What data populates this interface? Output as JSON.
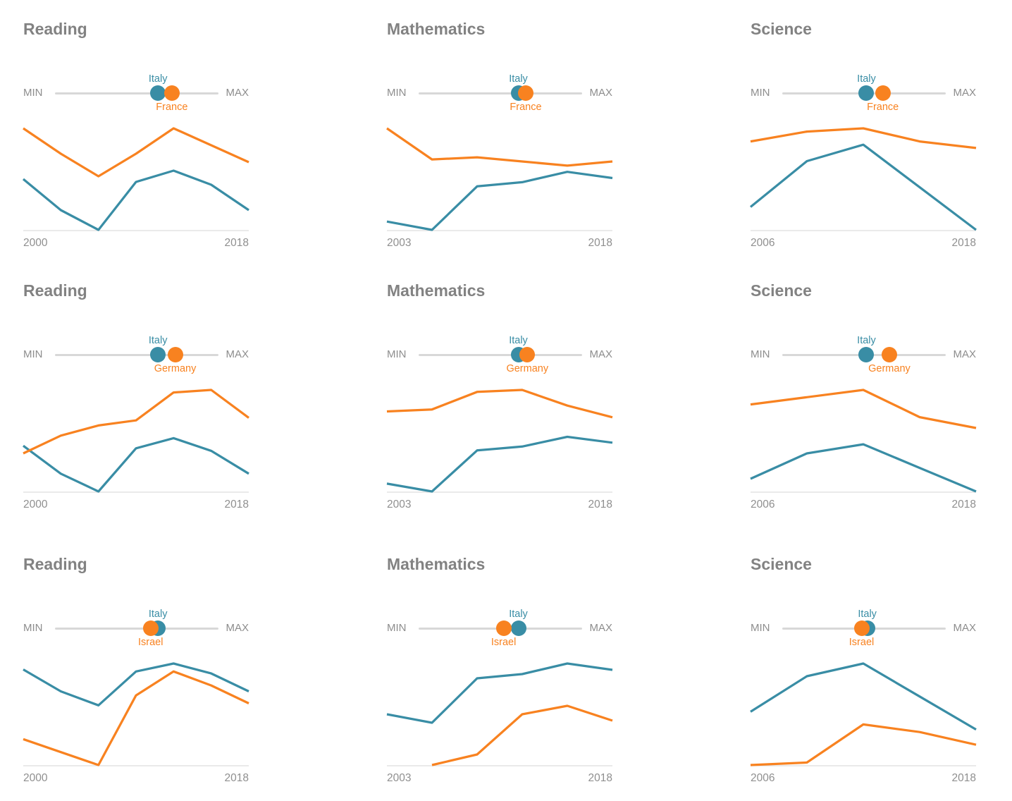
{
  "colors": {
    "italy": "#398DA5",
    "partner": "#F88220",
    "title": "#828282",
    "minmax": "#8D8D8D",
    "axis": "#8F8F8F",
    "track": "#D8D8D8",
    "baseline": "#DDDDDD",
    "bg": "#FFFFFF"
  },
  "slider_labels": {
    "min": "MIN",
    "max": "MAX"
  },
  "chart_data": [
    {
      "type": "line",
      "title": "Reading",
      "partner": "France",
      "x": [
        2000,
        2003,
        2006,
        2009,
        2012,
        2015,
        2018
      ],
      "xlabel_left": "2000",
      "xlabel_right": "2018",
      "series": [
        {
          "name": "Italy",
          "role": "italy",
          "values": [
            487,
            476,
            469,
            486,
            490,
            485,
            476
          ]
        },
        {
          "name": "France",
          "role": "partner",
          "values": [
            505,
            496,
            488,
            496,
            505,
            499,
            493
          ]
        }
      ],
      "slider": {
        "italy": 0.63,
        "partner": 0.715
      }
    },
    {
      "type": "line",
      "title": "Mathematics",
      "partner": "France",
      "x": [
        2003,
        2006,
        2009,
        2012,
        2015,
        2018
      ],
      "xlabel_left": "2003",
      "xlabel_right": "2018",
      "series": [
        {
          "name": "Italy",
          "role": "italy",
          "values": [
            466,
            462,
            483,
            485,
            490,
            487
          ]
        },
        {
          "name": "France",
          "role": "partner",
          "values": [
            511,
            496,
            497,
            495,
            493,
            495
          ]
        }
      ],
      "slider": {
        "italy": 0.61,
        "partner": 0.655
      }
    },
    {
      "type": "line",
      "title": "Science",
      "partner": "France",
      "x": [
        2006,
        2009,
        2012,
        2015,
        2018
      ],
      "xlabel_left": "2006",
      "xlabel_right": "2018",
      "series": [
        {
          "name": "Italy",
          "role": "italy",
          "values": [
            475,
            489,
            494,
            481,
            468
          ]
        },
        {
          "name": "France",
          "role": "partner",
          "values": [
            495,
            498,
            499,
            495,
            493
          ]
        }
      ],
      "slider": {
        "italy": 0.515,
        "partner": 0.615
      }
    },
    {
      "type": "line",
      "title": "Reading",
      "partner": "Germany",
      "x": [
        2000,
        2003,
        2006,
        2009,
        2012,
        2015,
        2018
      ],
      "xlabel_left": "2000",
      "xlabel_right": "2018",
      "series": [
        {
          "name": "Italy",
          "role": "italy",
          "values": [
            487,
            476,
            469,
            486,
            490,
            485,
            476
          ]
        },
        {
          "name": "Germany",
          "role": "partner",
          "values": [
            484,
            491,
            495,
            497,
            508,
            509,
            498
          ]
        }
      ],
      "slider": {
        "italy": 0.63,
        "partner": 0.735
      }
    },
    {
      "type": "line",
      "title": "Mathematics",
      "partner": "Germany",
      "x": [
        2003,
        2006,
        2009,
        2012,
        2015,
        2018
      ],
      "xlabel_left": "2003",
      "xlabel_right": "2018",
      "series": [
        {
          "name": "Italy",
          "role": "italy",
          "values": [
            466,
            462,
            483,
            485,
            490,
            487
          ]
        },
        {
          "name": "Germany",
          "role": "partner",
          "values": [
            503,
            504,
            513,
            514,
            506,
            500
          ]
        }
      ],
      "slider": {
        "italy": 0.61,
        "partner": 0.665
      }
    },
    {
      "type": "line",
      "title": "Science",
      "partner": "Germany",
      "x": [
        2006,
        2009,
        2012,
        2015,
        2018
      ],
      "xlabel_left": "2006",
      "xlabel_right": "2018",
      "series": [
        {
          "name": "Italy",
          "role": "italy",
          "values": [
            475,
            489,
            494,
            481,
            468
          ]
        },
        {
          "name": "Germany",
          "role": "partner",
          "values": [
            516,
            520,
            524,
            509,
            503
          ]
        }
      ],
      "slider": {
        "italy": 0.515,
        "partner": 0.655
      }
    },
    {
      "type": "line",
      "title": "Reading",
      "partner": "Israel",
      "x": [
        2000,
        2003,
        2006,
        2009,
        2012,
        2015,
        2018
      ],
      "xlabel_left": "2000",
      "xlabel_right": "2018",
      "series": [
        {
          "name": "Italy",
          "role": "italy",
          "values": [
            487,
            476,
            469,
            486,
            490,
            485,
            476
          ]
        },
        {
          "name": "Israel",
          "role": "partner",
          "values": [
            452,
            null,
            439,
            474,
            486,
            479,
            470
          ]
        }
      ],
      "slider": {
        "italy": 0.63,
        "partner": 0.585
      }
    },
    {
      "type": "line",
      "title": "Mathematics",
      "partner": "Israel",
      "x": [
        2003,
        2006,
        2009,
        2012,
        2015,
        2018
      ],
      "xlabel_left": "2003",
      "xlabel_right": "2018",
      "series": [
        {
          "name": "Italy",
          "role": "italy",
          "values": [
            466,
            462,
            483,
            485,
            490,
            487
          ]
        },
        {
          "name": "Israel",
          "role": "partner",
          "values": [
            null,
            442,
            447,
            466,
            470,
            463
          ]
        }
      ],
      "slider": {
        "italy": 0.61,
        "partner": 0.52
      }
    },
    {
      "type": "line",
      "title": "Science",
      "partner": "Israel",
      "x": [
        2006,
        2009,
        2012,
        2015,
        2018
      ],
      "xlabel_left": "2006",
      "xlabel_right": "2018",
      "series": [
        {
          "name": "Italy",
          "role": "italy",
          "values": [
            475,
            489,
            494,
            481,
            468
          ]
        },
        {
          "name": "Israel",
          "role": "partner",
          "values": [
            454,
            455,
            470,
            467,
            462
          ]
        }
      ],
      "slider": {
        "italy": 0.52,
        "partner": 0.485
      }
    }
  ]
}
